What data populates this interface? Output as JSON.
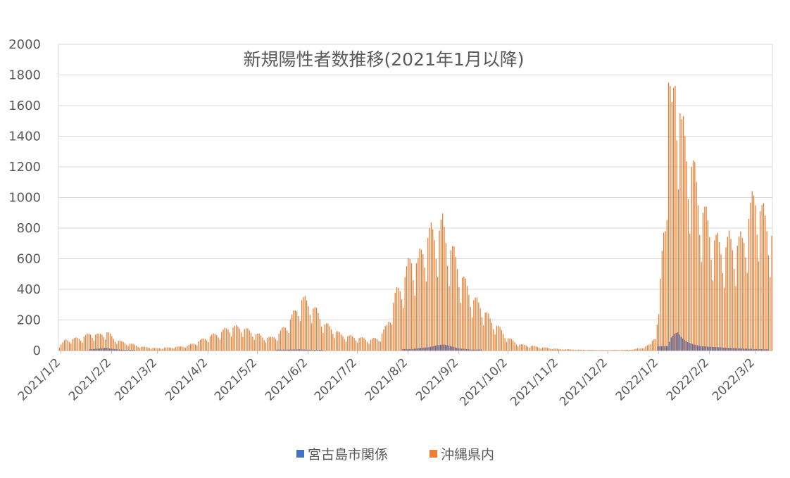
{
  "chart_data": {
    "type": "bar",
    "title": "新規陽性者数推移(2021年1月以降)",
    "xlabel": "",
    "ylabel": "",
    "ylim": [
      0,
      2000
    ],
    "y_ticks": [
      0,
      200,
      400,
      600,
      800,
      1000,
      1200,
      1400,
      1600,
      1800,
      2000
    ],
    "x_range": [
      "2021/1/1",
      "2022/3/12"
    ],
    "x_ticks": [
      "2021/1/2",
      "2021/2/2",
      "2021/3/2",
      "2021/4/2",
      "2021/5/2",
      "2021/6/2",
      "2021/7/2",
      "2021/8/2",
      "2021/9/2",
      "2021/10/2",
      "2021/11/2",
      "2021/12/2",
      "2022/1/2",
      "2022/2/2",
      "2022/3/2"
    ],
    "grid": true,
    "legend_position": "bottom",
    "series": [
      {
        "name": "宮古島市関係",
        "color": "#4472C4",
        "points": [
          [
            "2021/1/20",
            8
          ],
          [
            "2021/1/30",
            18
          ],
          [
            "2021/2/2",
            12
          ],
          [
            "2021/2/10",
            4
          ],
          [
            "2021/5/20",
            6
          ],
          [
            "2021/5/28",
            8
          ],
          [
            "2021/6/5",
            4
          ],
          [
            "2021/8/5",
            10
          ],
          [
            "2021/8/10",
            18
          ],
          [
            "2021/8/15",
            22
          ],
          [
            "2021/8/20",
            35
          ],
          [
            "2021/8/24",
            40
          ],
          [
            "2021/8/28",
            30
          ],
          [
            "2021/9/2",
            15
          ],
          [
            "2021/9/10",
            6
          ],
          [
            "2022/1/8",
            30
          ],
          [
            "2022/1/10",
            85
          ],
          [
            "2022/1/12",
            110
          ],
          [
            "2022/1/14",
            120
          ],
          [
            "2022/1/16",
            90
          ],
          [
            "2022/1/18",
            70
          ],
          [
            "2022/1/20",
            55
          ],
          [
            "2022/1/24",
            40
          ],
          [
            "2022/1/28",
            30
          ],
          [
            "2022/2/2",
            25
          ],
          [
            "2022/2/10",
            20
          ],
          [
            "2022/2/20",
            15
          ],
          [
            "2022/3/2",
            10
          ],
          [
            "2022/3/10",
            8
          ]
        ]
      },
      {
        "name": "沖縄県内",
        "color": "#ED7D31",
        "weekly_cycle": true,
        "points": [
          [
            "2021/1/1",
            30
          ],
          [
            "2021/1/5",
            70
          ],
          [
            "2021/1/10",
            75
          ],
          [
            "2021/1/15",
            85
          ],
          [
            "2021/1/20",
            110
          ],
          [
            "2021/1/25",
            100
          ],
          [
            "2021/1/30",
            120
          ],
          [
            "2021/2/3",
            80
          ],
          [
            "2021/2/8",
            55
          ],
          [
            "2021/2/13",
            45
          ],
          [
            "2021/2/20",
            25
          ],
          [
            "2021/3/1",
            15
          ],
          [
            "2021/3/10",
            20
          ],
          [
            "2021/3/20",
            30
          ],
          [
            "2021/3/27",
            60
          ],
          [
            "2021/4/2",
            90
          ],
          [
            "2021/4/8",
            110
          ],
          [
            "2021/4/15",
            150
          ],
          [
            "2021/4/22",
            150
          ],
          [
            "2021/4/28",
            120
          ],
          [
            "2021/5/5",
            90
          ],
          [
            "2021/5/10",
            80
          ],
          [
            "2021/5/15",
            110
          ],
          [
            "2021/5/20",
            170
          ],
          [
            "2021/5/25",
            250
          ],
          [
            "2021/5/29",
            330
          ],
          [
            "2021/6/3",
            300
          ],
          [
            "2021/6/7",
            250
          ],
          [
            "2021/6/12",
            170
          ],
          [
            "2021/6/17",
            140
          ],
          [
            "2021/6/22",
            100
          ],
          [
            "2021/6/28",
            90
          ],
          [
            "2021/7/4",
            80
          ],
          [
            "2021/7/10",
            70
          ],
          [
            "2021/7/15",
            80
          ],
          [
            "2021/7/20",
            160
          ],
          [
            "2021/7/25",
            350
          ],
          [
            "2021/7/30",
            450
          ],
          [
            "2021/8/4",
            600
          ],
          [
            "2021/8/8",
            560
          ],
          [
            "2021/8/13",
            730
          ],
          [
            "2021/8/18",
            760
          ],
          [
            "2021/8/23",
            800
          ],
          [
            "2021/8/27",
            680
          ],
          [
            "2021/9/1",
            560
          ],
          [
            "2021/9/6",
            420
          ],
          [
            "2021/9/11",
            330
          ],
          [
            "2021/9/16",
            280
          ],
          [
            "2021/9/21",
            200
          ],
          [
            "2021/9/26",
            150
          ],
          [
            "2021/10/2",
            80
          ],
          [
            "2021/10/9",
            40
          ],
          [
            "2021/10/16",
            30
          ],
          [
            "2021/10/23",
            20
          ],
          [
            "2021/11/2",
            10
          ],
          [
            "2021/11/15",
            5
          ],
          [
            "2021/12/1",
            3
          ],
          [
            "2021/12/15",
            5
          ],
          [
            "2021/12/22",
            15
          ],
          [
            "2021/12/28",
            40
          ],
          [
            "2021/12/31",
            120
          ],
          [
            "2022/1/2",
            220
          ],
          [
            "2022/1/4",
            620
          ],
          [
            "2022/1/6",
            1000
          ],
          [
            "2022/1/8",
            1750
          ],
          [
            "2022/1/10",
            1450
          ],
          [
            "2022/1/12",
            1820
          ],
          [
            "2022/1/14",
            1700
          ],
          [
            "2022/1/16",
            1400
          ],
          [
            "2022/1/19",
            1300
          ],
          [
            "2022/1/22",
            1200
          ],
          [
            "2022/1/26",
            1000
          ],
          [
            "2022/1/29",
            900
          ],
          [
            "2022/2/2",
            780
          ],
          [
            "2022/2/6",
            700
          ],
          [
            "2022/2/10",
            650
          ],
          [
            "2022/2/14",
            700
          ],
          [
            "2022/2/18",
            680
          ],
          [
            "2022/2/22",
            700
          ],
          [
            "2022/2/26",
            860
          ],
          [
            "2022/3/2",
            1000
          ],
          [
            "2022/3/6",
            880
          ],
          [
            "2022/3/9",
            820
          ],
          [
            "2022/3/12",
            750
          ]
        ]
      }
    ]
  }
}
